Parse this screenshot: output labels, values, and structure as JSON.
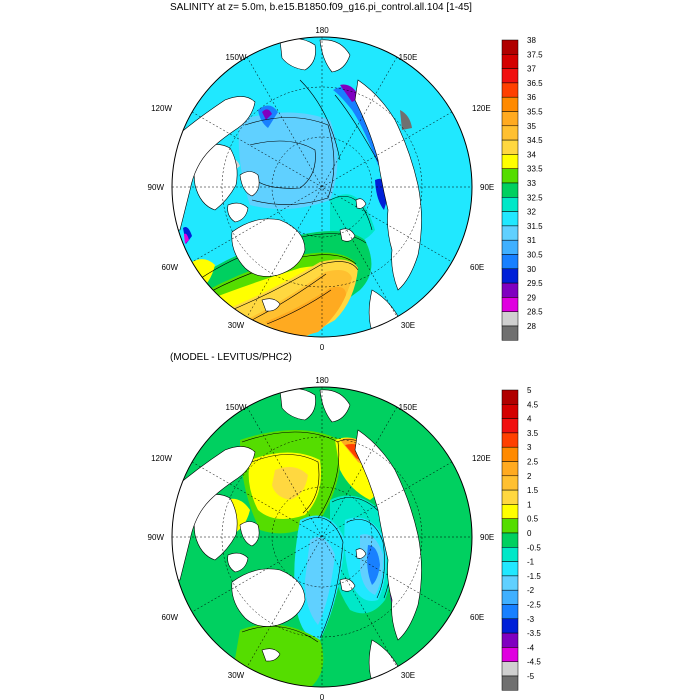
{
  "panels": [
    {
      "title": "SALINITY at z=   5.0m, b.e15.B1850.f09_g16.pi_control.all.104 [1-45]",
      "lon_labels": [
        "180",
        "150E",
        "120E",
        "90E",
        "60E",
        "30E",
        "0",
        "30W",
        "60W",
        "90W",
        "120W",
        "150W"
      ],
      "colorbar": {
        "labels": [
          "38",
          "37.5",
          "37",
          "36.5",
          "36",
          "35.5",
          "35",
          "34.5",
          "34",
          "33.5",
          "33",
          "32.5",
          "32",
          "31.5",
          "31",
          "30.5",
          "30",
          "29.5",
          "29",
          "28.5",
          "28"
        ],
        "colors": [
          "#b00000",
          "#d40000",
          "#f01010",
          "#ff4000",
          "#ff8a00",
          "#ffaa20",
          "#ffc030",
          "#ffd840",
          "#ffff00",
          "#55dd00",
          "#00d060",
          "#00e8c8",
          "#20e8ff",
          "#60d0ff",
          "#40b0ff",
          "#1880ff",
          "#0020d8",
          "#8000c0",
          "#e000e0",
          "#d0d0d0",
          "#707070"
        ]
      }
    },
    {
      "title": "(MODEL - LEVITUS/PHC2)",
      "lon_labels": [
        "180",
        "150E",
        "120E",
        "90E",
        "60E",
        "30E",
        "0",
        "30W",
        "60W",
        "90W",
        "120W",
        "150W"
      ],
      "colorbar": {
        "labels": [
          "5",
          "4.5",
          "4",
          "3.5",
          "3",
          "2.5",
          "2",
          "1.5",
          "1",
          "0.5",
          "0",
          "-0.5",
          "-1",
          "-1.5",
          "-2",
          "-2.5",
          "-3",
          "-3.5",
          "-4",
          "-4.5",
          "-5"
        ],
        "colors": [
          "#b00000",
          "#d40000",
          "#f01010",
          "#ff4000",
          "#ff8a00",
          "#ffaa20",
          "#ffc030",
          "#ffd840",
          "#ffff00",
          "#55dd00",
          "#00d060",
          "#00e8c8",
          "#20e8ff",
          "#60d0ff",
          "#40b0ff",
          "#1880ff",
          "#0020d8",
          "#8000c0",
          "#e000e0",
          "#d0d0d0",
          "#707070"
        ]
      }
    }
  ]
}
